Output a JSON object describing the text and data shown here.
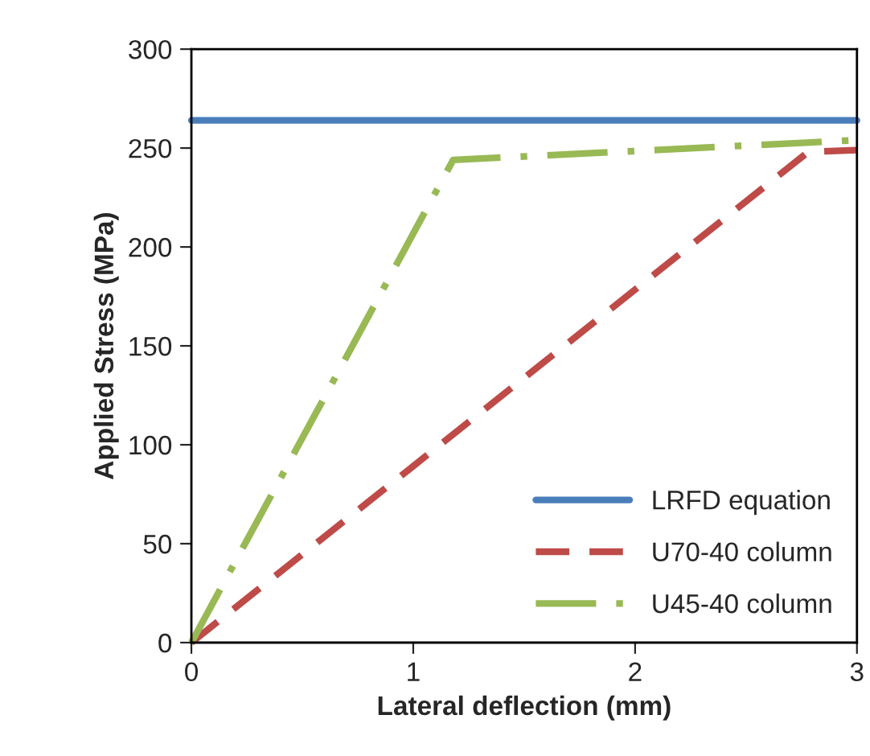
{
  "chart_data": {
    "type": "line",
    "xlabel": "Lateral deflection (mm)",
    "ylabel": "Applied Stress (MPa)",
    "xlim": [
      0,
      3
    ],
    "xticks": [
      0,
      1,
      2,
      3
    ],
    "ylim": [
      0,
      300
    ],
    "yticks": [
      0,
      50,
      100,
      150,
      200,
      250,
      300
    ],
    "series": [
      {
        "name": "LRFD equation",
        "color": "#4a7ebb",
        "x": [
          0,
          3
        ],
        "values": [
          264,
          264
        ],
        "line_style": "solid"
      },
      {
        "name": "U70-40 column",
        "color": "#be4b48",
        "x": [
          0,
          2.78,
          3
        ],
        "values": [
          0,
          248,
          249
        ],
        "line_style": "dashed"
      },
      {
        "name": "U45-40 column",
        "color": "#98b954",
        "x": [
          0,
          1.18,
          3
        ],
        "values": [
          0,
          244,
          254
        ],
        "line_style": "dashdot"
      }
    ],
    "grid": false,
    "legend": "bottom right"
  }
}
